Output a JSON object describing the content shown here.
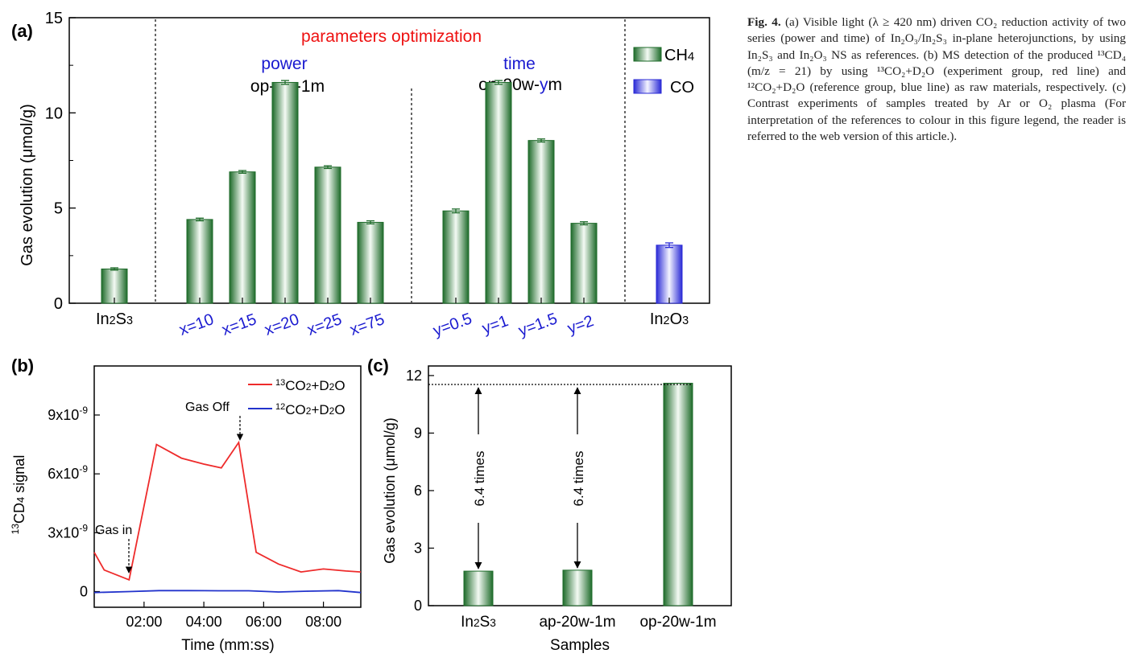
{
  "colors": {
    "ch4_edge": "#1e6b2a",
    "ch4_mid": "#f4faf4",
    "co_edge": "#2a2ad6",
    "co_mid": "#f4f4ff",
    "red_line": "#ee2b2b",
    "blue_line": "#2233cc",
    "blue_text": "#1a1ad0",
    "red_text": "#ee1111"
  },
  "caption": {
    "fig_label": "Fig. 4.",
    "text": "(a) Visible light (λ ≥ 420 nm) driven CO₂ reduction activity of two series (power and time) of In₂O₃/In₂S₃ in-plane heterojunctions, by using In₂S₃ and In₂O₃ NS as references. (b) MS detection of the produced ¹³CD₄ (m/z = 21) by using ¹³CO₂+D₂O (experiment group, red line) and ¹²CO₂+D₂O (reference group, blue line) as raw materials, respectively. (c) Contrast experiments of samples treated by Ar or O₂ plasma (For interpretation of the references to colour in this figure legend, the reader is referred to the web version of this article.)."
  },
  "chart_data": [
    {
      "panel": "(a)",
      "type": "bar",
      "title": "parameters optimization",
      "ylabel": "Gas evolution (μmol/g)",
      "ylim": [
        0,
        15
      ],
      "yticks": [
        0,
        5,
        10,
        15
      ],
      "group_labels": {
        "power_word": "power",
        "power_prefix": "op-",
        "power_var": "x",
        "power_suffix": "w-1m",
        "time_word": "time",
        "time_prefix": "op-20w-",
        "time_var": "y",
        "time_suffix": "m"
      },
      "legend": [
        "CH4",
        "CO"
      ],
      "bars": [
        {
          "label": "In2S3",
          "value": 1.8,
          "error": 0.06,
          "series": "CH4"
        },
        {
          "label": "x=10",
          "value": 4.4,
          "error": 0.07,
          "series": "CH4"
        },
        {
          "label": "x=15",
          "value": 6.9,
          "error": 0.07,
          "series": "CH4"
        },
        {
          "label": "x=20",
          "value": 11.6,
          "error": 0.1,
          "series": "CH4"
        },
        {
          "label": "x=25",
          "value": 7.15,
          "error": 0.07,
          "series": "CH4"
        },
        {
          "label": "x=75",
          "value": 4.25,
          "error": 0.08,
          "series": "CH4"
        },
        {
          "label": "y=0.5",
          "value": 4.85,
          "error": 0.1,
          "series": "CH4"
        },
        {
          "label": "y=1",
          "value": 11.6,
          "error": 0.1,
          "series": "CH4"
        },
        {
          "label": "y=1.5",
          "value": 8.55,
          "error": 0.08,
          "series": "CH4"
        },
        {
          "label": "y=2",
          "value": 4.2,
          "error": 0.08,
          "series": "CH4"
        },
        {
          "label": "In2O3",
          "value": 3.05,
          "error": 0.12,
          "series": "CO"
        }
      ]
    },
    {
      "panel": "(b)",
      "type": "line",
      "xlabel": "Time (mm:ss)",
      "ylabel": "13CD4 signal",
      "xticks": [
        "02:00",
        "04:00",
        "06:00",
        "08:00"
      ],
      "xlim_seconds": [
        20,
        555
      ],
      "yticks": [
        "0",
        "3x10-9",
        "6x10-9",
        "9x10-9"
      ],
      "ylim": [
        -8e-10,
        1.15e-08
      ],
      "annotations": [
        "Gas in",
        "Gas Off"
      ],
      "series": [
        {
          "name": "13CO2+D2O",
          "color": "red",
          "x": [
            "00:20",
            "00:40",
            "01:30",
            "02:25",
            "03:15",
            "04:00",
            "04:35",
            "05:10",
            "05:45",
            "06:30",
            "07:15",
            "08:00",
            "08:45",
            "09:15"
          ],
          "y": [
            2e-09,
            1.1e-09,
            6e-10,
            7.5e-09,
            6.8e-09,
            6.5e-09,
            6.3e-09,
            7.6e-09,
            2e-09,
            1.4e-09,
            1e-09,
            1.15e-09,
            1.05e-09,
            1e-09
          ]
        },
        {
          "name": "12CO2+D2O",
          "color": "blue",
          "x": [
            "00:20",
            "01:30",
            "02:30",
            "03:30",
            "04:30",
            "05:30",
            "06:30",
            "07:30",
            "08:30",
            "09:15"
          ],
          "y": [
            -5e-11,
            0.0,
            5e-11,
            5e-11,
            4e-11,
            4e-11,
            -2e-11,
            2e-11,
            5e-11,
            -5e-11
          ]
        }
      ]
    },
    {
      "panel": "(c)",
      "type": "bar",
      "xlabel": "Samples",
      "ylabel": "Gas evolution (μmol/g)",
      "ylim": [
        0,
        12.5
      ],
      "yticks": [
        0,
        3,
        6,
        9,
        12
      ],
      "categories": [
        "In2S3",
        "ap-20w-1m",
        "op-20w-1m"
      ],
      "values": [
        1.8,
        1.85,
        11.6
      ],
      "annotations": [
        "6.4 times",
        "6.4 times"
      ]
    }
  ]
}
